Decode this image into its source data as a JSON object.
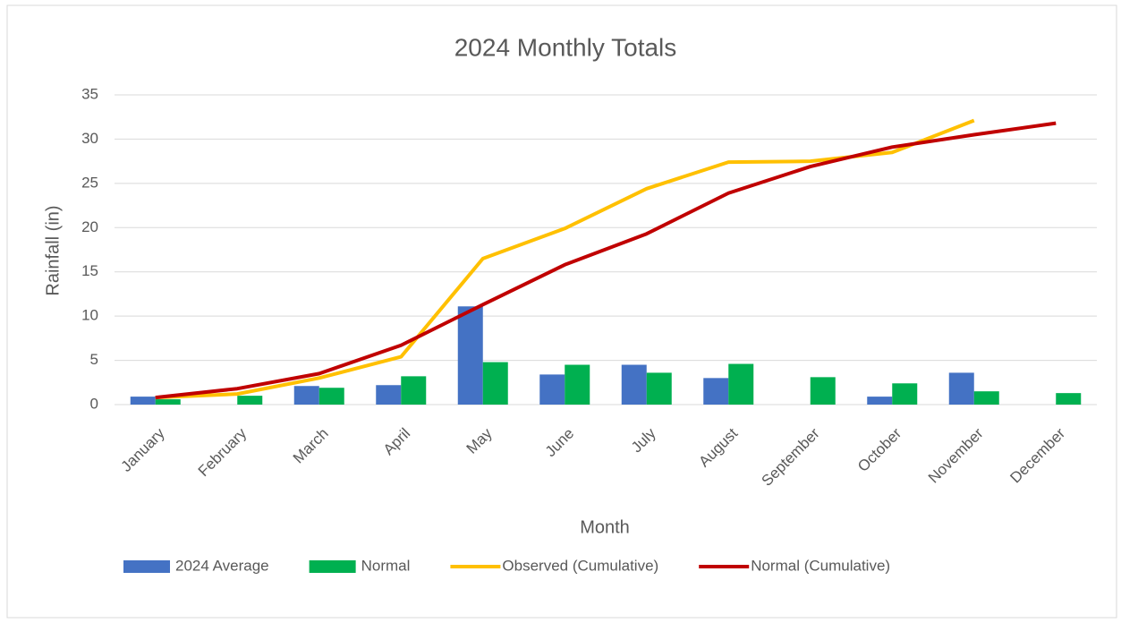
{
  "chart_data": {
    "type": "bar",
    "title": "2024 Monthly Totals",
    "x_label": "Month",
    "y_label": "Rainfall (in)",
    "categories": [
      "January",
      "February",
      "March",
      "April",
      "May",
      "June",
      "July",
      "August",
      "September",
      "October",
      "November",
      "December"
    ],
    "series": [
      {
        "name": "2024 Average",
        "type": "bar",
        "color": "#4472c4",
        "values": [
          0.9,
          null,
          2.1,
          2.2,
          11.1,
          3.4,
          4.5,
          3.0,
          null,
          0.9,
          3.6,
          null
        ]
      },
      {
        "name": "Normal",
        "type": "bar",
        "color": "#00b050",
        "values": [
          0.6,
          1.0,
          1.9,
          3.2,
          4.8,
          4.5,
          3.6,
          4.6,
          3.1,
          2.4,
          1.5,
          1.3
        ]
      },
      {
        "name": "Observed (Cumulative)",
        "type": "line",
        "color": "#ffc000",
        "values": [
          0.8,
          1.2,
          3.0,
          5.4,
          16.5,
          19.9,
          24.4,
          27.4,
          27.5,
          28.5,
          32.1,
          null
        ]
      },
      {
        "name": "Normal (Cumulative)",
        "type": "line",
        "color": "#c00000",
        "values": [
          0.8,
          1.8,
          3.5,
          6.7,
          11.3,
          15.8,
          19.3,
          23.9,
          26.9,
          29.1,
          30.5,
          31.8
        ]
      }
    ],
    "ylim": [
      0,
      35
    ],
    "yticks": [
      0,
      5,
      10,
      15,
      20,
      25,
      30,
      35
    ],
    "grid": true,
    "legend": "bottom"
  }
}
